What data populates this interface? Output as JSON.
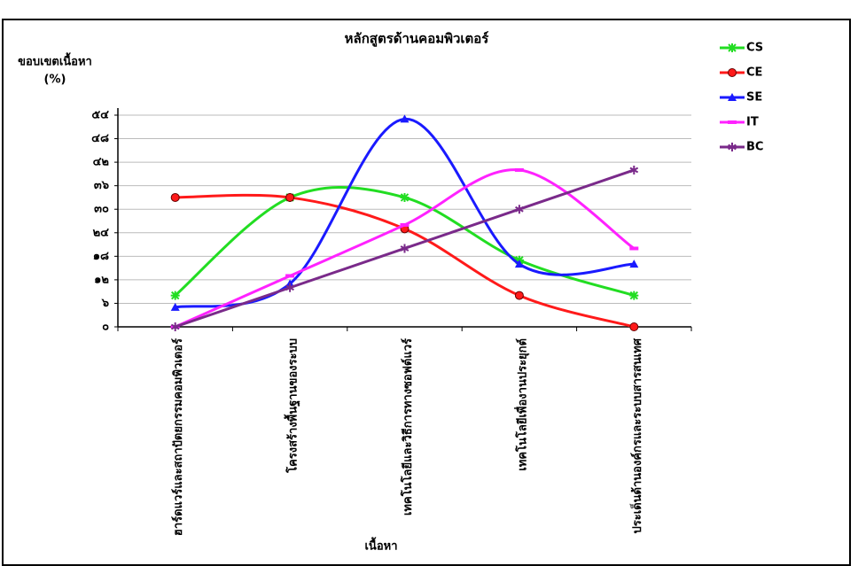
{
  "chart_data": {
    "type": "line",
    "title": "หลักสูตรด้านคอมพิวเตอร์",
    "y_label": [
      "ขอบเขตเนื้อหา",
      "(%)"
    ],
    "x_label": "เนื้อหา",
    "categories": [
      "ฮาร์ดแวร์และสถาปัตยกรรมคอมพิวเตอร์",
      "โครงสร้างพื้นฐานของระบบ",
      "เทคโนโลยีและวิธีการทางซอฟต์แวร์",
      "เทคโนโลยีเพื่องานประยุกต์",
      "ประเด็นด้านองค์กรและระบบสารสนเทศ"
    ],
    "series": [
      {
        "name": "CS",
        "color": "#22dd22",
        "marker": "star",
        "values": [
          8,
          33,
          33,
          17,
          8
        ]
      },
      {
        "name": "CE",
        "color": "#ff1a1a",
        "marker": "circle",
        "values": [
          33,
          33,
          25,
          8,
          0
        ]
      },
      {
        "name": "SE",
        "color": "#1a1aff",
        "marker": "triangle",
        "values": [
          5,
          11,
          53,
          16,
          16
        ]
      },
      {
        "name": "IT",
        "color": "#ff22ff",
        "marker": "dash",
        "values": [
          0,
          13,
          26,
          40,
          20
        ]
      },
      {
        "name": "BC",
        "color": "#7a2a8a",
        "marker": "asterisk",
        "values": [
          0,
          10,
          20,
          30,
          40
        ]
      }
    ],
    "ylim": [
      0,
      54
    ],
    "yticks": [
      {
        "value": 0,
        "label": "๐"
      },
      {
        "value": 6,
        "label": "๖"
      },
      {
        "value": 12,
        "label": "๑๒"
      },
      {
        "value": 18,
        "label": "๑๘"
      },
      {
        "value": 24,
        "label": "๒๔"
      },
      {
        "value": 30,
        "label": "๓๐"
      },
      {
        "value": 36,
        "label": "๓๖"
      },
      {
        "value": 42,
        "label": "๔๒"
      },
      {
        "value": 48,
        "label": "๔๘"
      },
      {
        "value": 54,
        "label": "๕๔"
      }
    ],
    "grid": true,
    "smooth": true,
    "legend": "right"
  }
}
